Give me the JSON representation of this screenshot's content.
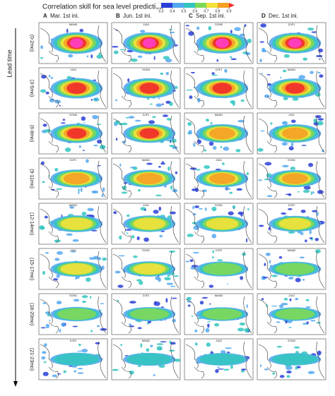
{
  "title": "Correlation skill for sea level prediction",
  "colorbar": {
    "ticks": [
      0.3,
      0.4,
      0.5,
      0.6,
      0.7,
      0.8,
      0.9
    ],
    "colors": [
      "#2a3fd6",
      "#55a8f0",
      "#33c6c0",
      "#7ed957",
      "#f2e23a",
      "#f5a023",
      "#ef2b2b",
      "#ff3fc9"
    ]
  },
  "columns": [
    {
      "letter": "A",
      "label": "Mar. 1st ini."
    },
    {
      "letter": "B",
      "label": "Jun. 1st ini."
    },
    {
      "letter": "C",
      "label": "Sep. 1st ini."
    },
    {
      "letter": "D",
      "label": "Dec. 1st ini."
    }
  ],
  "y_axis_label": "Lead time",
  "rows": [
    "(0-2mo)",
    "(3-5mo)",
    "(6-8mo)",
    "(9-11mo)",
    "(12-14mo)",
    "(15-17mo)",
    "(18-20mo)",
    "(21-23mo)"
  ],
  "panels": [
    [
      "MAM0",
      "JJA0",
      "SON0",
      "DJF1"
    ],
    [
      "JJA0",
      "SON0",
      "DJF1",
      "MAM1"
    ],
    [
      "SON0",
      "DJF1",
      "MAM1",
      "JJA1"
    ],
    [
      "DJF1",
      "MAM1",
      "JJA1",
      "SON1"
    ],
    [
      "MAM1",
      "JJA1",
      "SON1",
      "DJF2"
    ],
    [
      "JJA1",
      "SON1",
      "DJF2",
      "MAM2"
    ],
    [
      "SON1",
      "DJF2",
      "MAM2",
      "JJA2"
    ],
    [
      "DJF2",
      "MAM2",
      "JJA2",
      "SON2"
    ]
  ]
}
